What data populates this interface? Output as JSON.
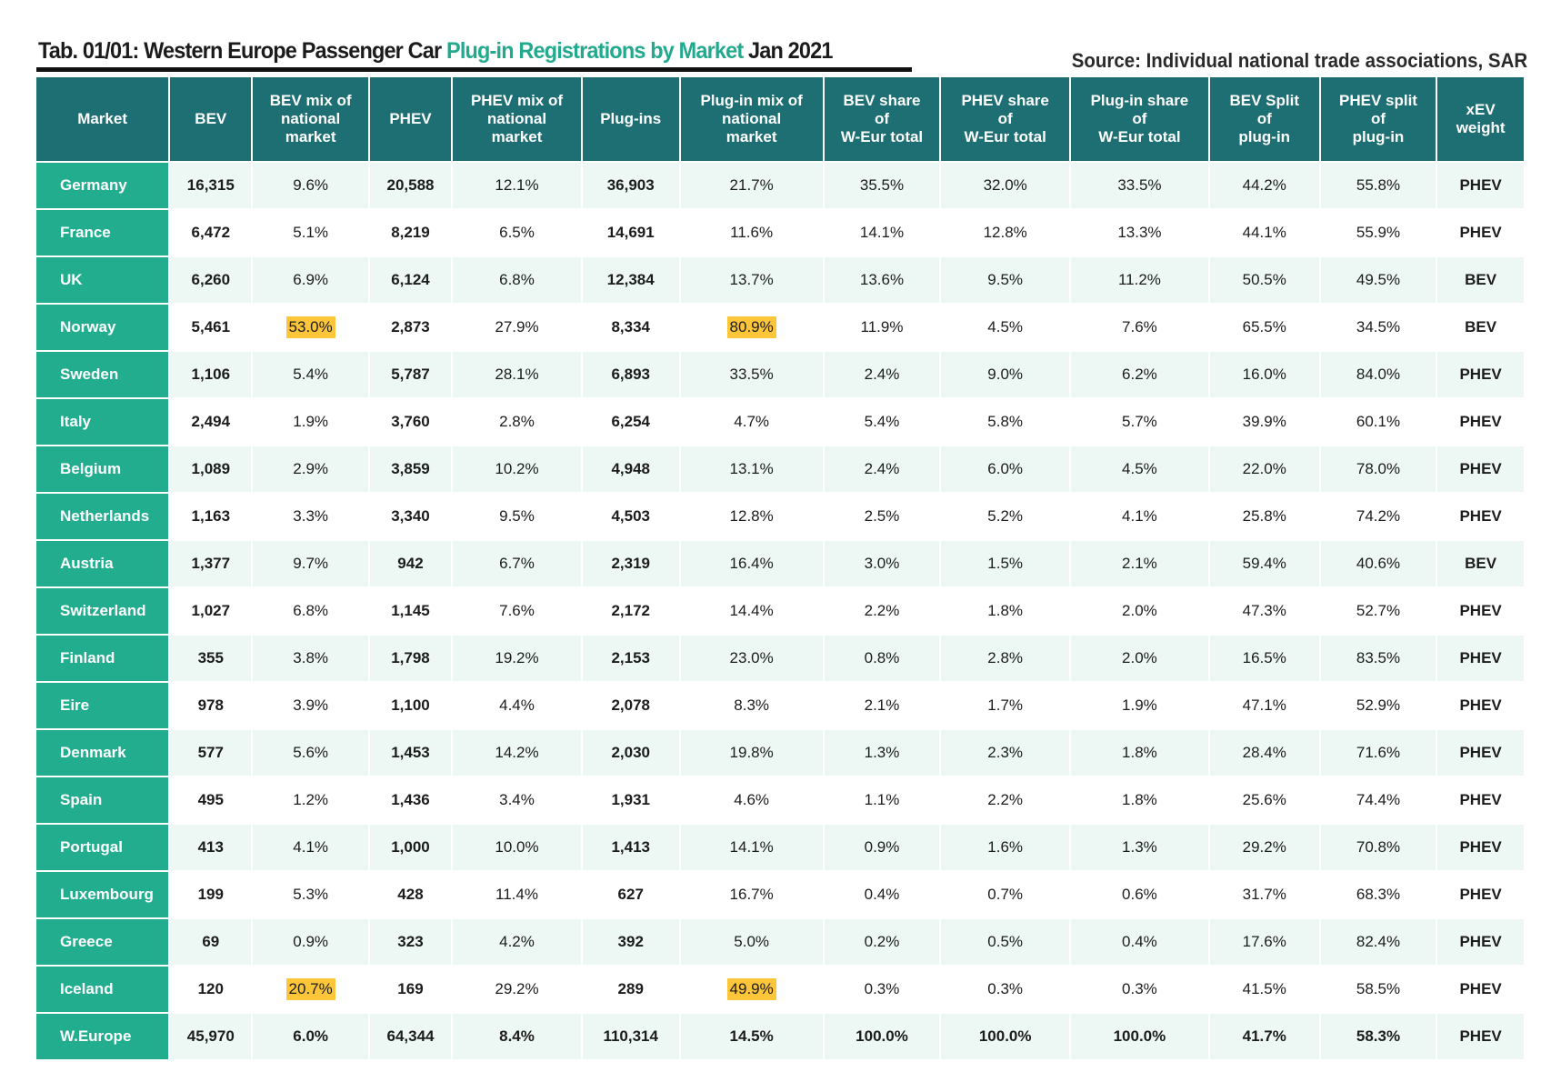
{
  "header": {
    "title_prefix": "Tab. 01/01: Western Europe Passenger Car ",
    "title_highlight": "Plug-in Registrations by Market",
    "title_suffix": "  Jan 2021",
    "source": "Source: Individual national trade associations, SAR"
  },
  "colors": {
    "header_bg": "#1e6f74",
    "market_bg": "#23ad8f",
    "row_stripe": "#edf8f5",
    "highlight": "#fcc53a",
    "title_accent": "#23a98d"
  },
  "table": {
    "columns": [
      [
        "Market"
      ],
      [
        "BEV"
      ],
      [
        "BEV mix of",
        "national",
        "market"
      ],
      [
        "PHEV"
      ],
      [
        "PHEV mix of",
        "national",
        "market"
      ],
      [
        "Plug-ins"
      ],
      [
        "Plug-in mix of",
        "national",
        "market"
      ],
      [
        "BEV share",
        "of",
        "W-Eur total"
      ],
      [
        "PHEV share",
        "of",
        "W-Eur total"
      ],
      [
        "Plug-in share",
        "of",
        "W-Eur total"
      ],
      [
        "BEV Split",
        "of",
        "plug-in"
      ],
      [
        "PHEV split",
        "of",
        "plug-in"
      ],
      [
        "xEV",
        "weight"
      ]
    ],
    "rows": [
      [
        "Germany",
        "16,315",
        "9.6%",
        "20,588",
        "12.1%",
        "36,903",
        "21.7%",
        "35.5%",
        "32.0%",
        "33.5%",
        "44.2%",
        "55.8%",
        "PHEV"
      ],
      [
        "France",
        "6,472",
        "5.1%",
        "8,219",
        "6.5%",
        "14,691",
        "11.6%",
        "14.1%",
        "12.8%",
        "13.3%",
        "44.1%",
        "55.9%",
        "PHEV"
      ],
      [
        "UK",
        "6,260",
        "6.9%",
        "6,124",
        "6.8%",
        "12,384",
        "13.7%",
        "13.6%",
        "9.5%",
        "11.2%",
        "50.5%",
        "49.5%",
        "BEV"
      ],
      [
        "Norway",
        "5,461",
        "53.0%",
        "2,873",
        "27.9%",
        "8,334",
        "80.9%",
        "11.9%",
        "4.5%",
        "7.6%",
        "65.5%",
        "34.5%",
        "BEV"
      ],
      [
        "Sweden",
        "1,106",
        "5.4%",
        "5,787",
        "28.1%",
        "6,893",
        "33.5%",
        "2.4%",
        "9.0%",
        "6.2%",
        "16.0%",
        "84.0%",
        "PHEV"
      ],
      [
        "Italy",
        "2,494",
        "1.9%",
        "3,760",
        "2.8%",
        "6,254",
        "4.7%",
        "5.4%",
        "5.8%",
        "5.7%",
        "39.9%",
        "60.1%",
        "PHEV"
      ],
      [
        "Belgium",
        "1,089",
        "2.9%",
        "3,859",
        "10.2%",
        "4,948",
        "13.1%",
        "2.4%",
        "6.0%",
        "4.5%",
        "22.0%",
        "78.0%",
        "PHEV"
      ],
      [
        "Netherlands",
        "1,163",
        "3.3%",
        "3,340",
        "9.5%",
        "4,503",
        "12.8%",
        "2.5%",
        "5.2%",
        "4.1%",
        "25.8%",
        "74.2%",
        "PHEV"
      ],
      [
        "Austria",
        "1,377",
        "9.7%",
        "942",
        "6.7%",
        "2,319",
        "16.4%",
        "3.0%",
        "1.5%",
        "2.1%",
        "59.4%",
        "40.6%",
        "BEV"
      ],
      [
        "Switzerland",
        "1,027",
        "6.8%",
        "1,145",
        "7.6%",
        "2,172",
        "14.4%",
        "2.2%",
        "1.8%",
        "2.0%",
        "47.3%",
        "52.7%",
        "PHEV"
      ],
      [
        "Finland",
        "355",
        "3.8%",
        "1,798",
        "19.2%",
        "2,153",
        "23.0%",
        "0.8%",
        "2.8%",
        "2.0%",
        "16.5%",
        "83.5%",
        "PHEV"
      ],
      [
        "Eire",
        "978",
        "3.9%",
        "1,100",
        "4.4%",
        "2,078",
        "8.3%",
        "2.1%",
        "1.7%",
        "1.9%",
        "47.1%",
        "52.9%",
        "PHEV"
      ],
      [
        "Denmark",
        "577",
        "5.6%",
        "1,453",
        "14.2%",
        "2,030",
        "19.8%",
        "1.3%",
        "2.3%",
        "1.8%",
        "28.4%",
        "71.6%",
        "PHEV"
      ],
      [
        "Spain",
        "495",
        "1.2%",
        "1,436",
        "3.4%",
        "1,931",
        "4.6%",
        "1.1%",
        "2.2%",
        "1.8%",
        "25.6%",
        "74.4%",
        "PHEV"
      ],
      [
        "Portugal",
        "413",
        "4.1%",
        "1,000",
        "10.0%",
        "1,413",
        "14.1%",
        "0.9%",
        "1.6%",
        "1.3%",
        "29.2%",
        "70.8%",
        "PHEV"
      ],
      [
        "Luxembourg",
        "199",
        "5.3%",
        "428",
        "11.4%",
        "627",
        "16.7%",
        "0.4%",
        "0.7%",
        "0.6%",
        "31.7%",
        "68.3%",
        "PHEV"
      ],
      [
        "Greece",
        "69",
        "0.9%",
        "323",
        "4.2%",
        "392",
        "5.0%",
        "0.2%",
        "0.5%",
        "0.4%",
        "17.6%",
        "82.4%",
        "PHEV"
      ],
      [
        "Iceland",
        "120",
        "20.7%",
        "169",
        "29.2%",
        "289",
        "49.9%",
        "0.3%",
        "0.3%",
        "0.3%",
        "41.5%",
        "58.5%",
        "PHEV"
      ],
      [
        "W.Europe",
        "45,970",
        "6.0%",
        "64,344",
        "8.4%",
        "110,314",
        "14.5%",
        "100.0%",
        "100.0%",
        "100.0%",
        "41.7%",
        "58.3%",
        "PHEV"
      ]
    ],
    "highlighted": [
      [
        3,
        2
      ],
      [
        3,
        6
      ],
      [
        17,
        2
      ],
      [
        17,
        6
      ]
    ],
    "bold_columns": [
      1,
      3,
      5,
      12
    ],
    "total_row": 18
  }
}
